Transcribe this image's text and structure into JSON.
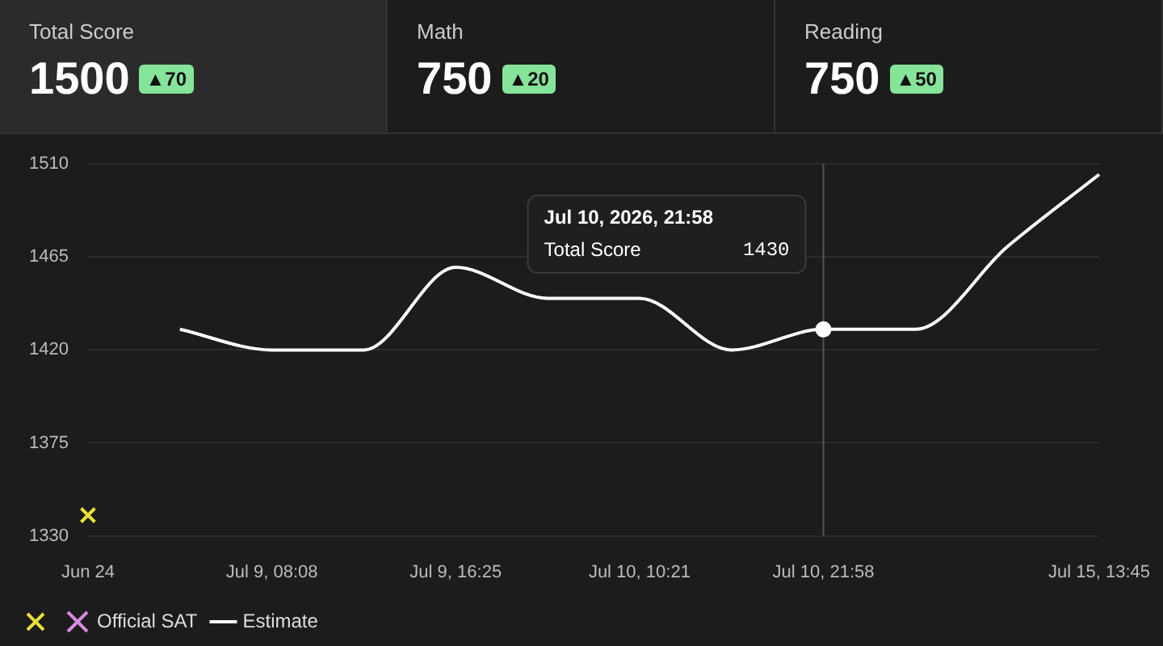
{
  "chart_data": [
    {
      "type": "other",
      "categories": [
        "Total Score",
        "Math",
        "Reading"
      ],
      "values": [
        1500,
        750,
        750
      ],
      "data_labels": true,
      "annotations": [
        "▲70",
        "▲20",
        "▲50"
      ]
    },
    {
      "type": "line",
      "categories": [
        "Jun 24",
        null,
        "Jul 9, 08:08",
        null,
        "Jul 9, 16:25",
        null,
        "Jul 10, 10:21",
        null,
        "Jul 10, 21:58",
        null,
        null,
        "Jul 15, 13:45"
      ],
      "series": [
        {
          "type": "scatter",
          "color": "#e8e03a",
          "marker": "cross",
          "values": [
            1340,
            null,
            null,
            null,
            null,
            null,
            null,
            null,
            null,
            null,
            null,
            null
          ]
        },
        {
          "type": "scatter",
          "name": "Official SAT",
          "color": "#d98ae0",
          "marker": "cross",
          "values": [
            null,
            null,
            null,
            null,
            null,
            null,
            null,
            null,
            null,
            null,
            null,
            null
          ]
        },
        {
          "type": "line",
          "name": "Estimate",
          "color": "#ffffff",
          "marker": "none",
          "values": [
            null,
            1430,
            1420,
            1420,
            1460,
            1445,
            1445,
            1420,
            1430,
            1430,
            1470,
            1505
          ]
        },
        {
          "type": "line",
          "color": "#ffffff",
          "marker": "circle",
          "values": [
            null,
            null,
            null,
            null,
            null,
            null,
            null,
            null,
            1430,
            null,
            null,
            null
          ]
        }
      ],
      "ylim": [
        1330,
        1510
      ],
      "yticks": [
        1330,
        1375,
        1420,
        1465,
        1510
      ],
      "grid": "y",
      "legend": "bottom left",
      "ref_lines": [
        {
          "axis": "x",
          "value": "Jul 10, 21:58",
          "color": "#555555"
        }
      ],
      "annotations": [
        "Jul 10, 2026, 21:58",
        "Total Score",
        "1430"
      ]
    }
  ]
}
